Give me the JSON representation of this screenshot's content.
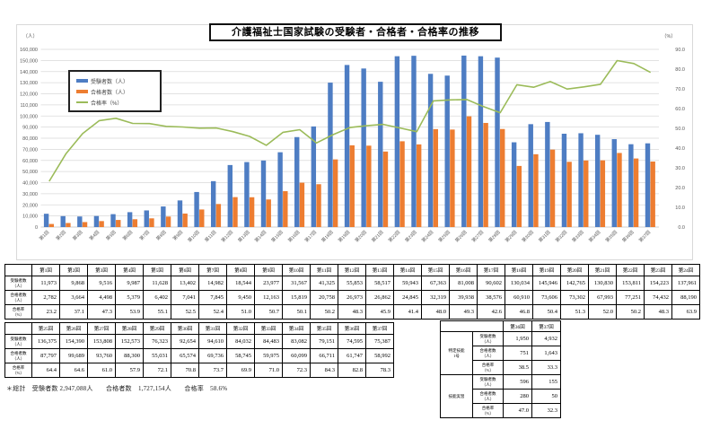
{
  "chart_data": {
    "type": "bar",
    "subtype": "combo-bar-line",
    "title": "介護福祉士国家試験の受験者・合格者・合格率の推移",
    "axis_units": {
      "left": "（人）",
      "right": "（%）"
    },
    "ylim_left": [
      0,
      160000
    ],
    "ytick_left": 10000,
    "ylim_right": [
      0,
      90
    ],
    "ytick_right": 10,
    "grid": true,
    "legend_position": "inside-top-left",
    "categories": [
      "第1回",
      "第2回",
      "第3回",
      "第4回",
      "第5回",
      "第6回",
      "第7回",
      "第8回",
      "第9回",
      "第10回",
      "第11回",
      "第12回",
      "第13回",
      "第14回",
      "第15回",
      "第16回",
      "第17回",
      "第18回",
      "第19回",
      "第20回",
      "第21回",
      "第22回",
      "第23回",
      "第24回",
      "第25回",
      "第26回",
      "第27回",
      "第28回",
      "第29回",
      "第30回",
      "第31回",
      "第32回",
      "第33回",
      "第34回",
      "第35回",
      "第36回",
      "第37回"
    ],
    "series": [
      {
        "name": "受験者数（人）",
        "type": "bar",
        "axis": "left",
        "color": "#4E7DC3",
        "values": [
          11973,
          9868,
          9516,
          9987,
          11628,
          13402,
          14982,
          18544,
          23977,
          31567,
          41325,
          55853,
          58517,
          59943,
          67363,
          81008,
          90602,
          130034,
          145946,
          142765,
          130830,
          153811,
          154223,
          137961,
          136375,
          154390,
          153808,
          152573,
          76323,
          92654,
          94610,
          84032,
          84483,
          83082,
          79151,
          74595,
          75387
        ]
      },
      {
        "name": "合格者数（人）",
        "type": "bar",
        "axis": "left",
        "color": "#ED7D31",
        "values": [
          2782,
          3664,
          4498,
          5379,
          6402,
          7041,
          7845,
          9450,
          12163,
          15819,
          20758,
          26973,
          26862,
          24845,
          32319,
          39938,
          38576,
          60910,
          73606,
          73302,
          67993,
          77251,
          74432,
          88190,
          87797,
          99689,
          93760,
          88300,
          55031,
          65574,
          69736,
          58745,
          59975,
          60099,
          66711,
          61747,
          58992
        ]
      },
      {
        "name": "合格率（%）",
        "type": "line",
        "axis": "right",
        "color": "#9BBB59",
        "values": [
          23.2,
          37.1,
          47.3,
          53.9,
          55.1,
          52.5,
          52.4,
          51.0,
          50.7,
          50.1,
          50.2,
          48.3,
          45.9,
          41.4,
          48.0,
          49.3,
          42.6,
          46.8,
          50.4,
          51.3,
          52.0,
          50.2,
          48.3,
          63.9,
          64.4,
          64.6,
          61.0,
          57.9,
          72.1,
          70.8,
          73.7,
          69.9,
          71.0,
          72.3,
          84.3,
          82.8,
          78.3
        ]
      }
    ]
  },
  "table1": {
    "col_headers": [
      "第1回",
      "第2回",
      "第3回",
      "第4回",
      "第5回",
      "第6回",
      "第7回",
      "第8回",
      "第9回",
      "第10回",
      "第11回",
      "第12回",
      "第13回",
      "第14回",
      "第15回",
      "第16回",
      "第17回",
      "第18回",
      "第19回",
      "第20回",
      "第21回",
      "第22回",
      "第23回",
      "第24回"
    ],
    "rows": [
      {
        "label": "受験者数\n（人）",
        "values": [
          "11,973",
          "9,868",
          "9,516",
          "9,987",
          "11,628",
          "13,402",
          "14,982",
          "18,544",
          "23,977",
          "31,567",
          "41,325",
          "55,853",
          "58,517",
          "59,943",
          "67,363",
          "81,008",
          "90,602",
          "130,034",
          "145,946",
          "142,765",
          "130,830",
          "153,811",
          "154,223",
          "137,961"
        ]
      },
      {
        "label": "合格者数\n（人）",
        "values": [
          "2,782",
          "3,664",
          "4,498",
          "5,379",
          "6,402",
          "7,041",
          "7,845",
          "9,450",
          "12,163",
          "15,819",
          "20,758",
          "26,973",
          "26,862",
          "24,845",
          "32,319",
          "39,938",
          "38,576",
          "60,910",
          "73,606",
          "73,302",
          "67,993",
          "77,251",
          "74,432",
          "88,190"
        ]
      },
      {
        "label": "合格率\n（%）",
        "values": [
          "23.2",
          "37.1",
          "47.3",
          "53.9",
          "55.1",
          "52.5",
          "52.4",
          "51.0",
          "50.7",
          "50.1",
          "50.2",
          "48.3",
          "45.9",
          "41.4",
          "48.0",
          "49.3",
          "42.6",
          "46.8",
          "50.4",
          "51.3",
          "52.0",
          "50.2",
          "48.3",
          "63.9"
        ]
      }
    ]
  },
  "table2": {
    "col_headers": [
      "第25回",
      "第26回",
      "第27回",
      "第28回",
      "第29回",
      "第30回",
      "第31回",
      "第32回",
      "第33回",
      "第34回",
      "第35回",
      "第36回",
      "第37回"
    ],
    "rows": [
      {
        "label": "受験者数\n（人）",
        "values": [
          "136,375",
          "154,390",
          "153,808",
          "152,573",
          "76,323",
          "92,654",
          "94,610",
          "84,032",
          "84,483",
          "83,082",
          "79,151",
          "74,595",
          "75,387"
        ]
      },
      {
        "label": "合格者数\n（人）",
        "values": [
          "87,797",
          "99,689",
          "93,760",
          "88,300",
          "55,031",
          "65,574",
          "69,736",
          "58,745",
          "59,975",
          "60,099",
          "66,711",
          "61,747",
          "58,992"
        ]
      },
      {
        "label": "合格率\n（%）",
        "values": [
          "64.4",
          "64.6",
          "61.0",
          "57.9",
          "72.1",
          "70.8",
          "73.7",
          "69.9",
          "71.0",
          "72.3",
          "84.3",
          "82.8",
          "78.3"
        ]
      }
    ]
  },
  "special_table": {
    "col_headers": [
      "第36回",
      "第37回"
    ],
    "groups": [
      {
        "label": "特定技能\n1号",
        "rows": [
          {
            "label": "受験者数\n（人）",
            "values": [
              "1,950",
              "4,932"
            ]
          },
          {
            "label": "合格者数\n（人）",
            "values": [
              "751",
              "1,643"
            ]
          },
          {
            "label": "合格率\n（%）",
            "values": [
              "38.5",
              "33.3"
            ]
          }
        ]
      },
      {
        "label": "技能実習",
        "rows": [
          {
            "label": "受験者数\n（人）",
            "values": [
              "596",
              "155"
            ]
          },
          {
            "label": "合格者数\n（人）",
            "values": [
              "280",
              "50"
            ]
          },
          {
            "label": "合格率\n（%）",
            "values": [
              "47.0",
              "32.3"
            ]
          }
        ]
      }
    ]
  },
  "footnote": "＊総計　受験者数 2,947,088人　　合格者数　1,727,154人　　合格率　58.6%"
}
